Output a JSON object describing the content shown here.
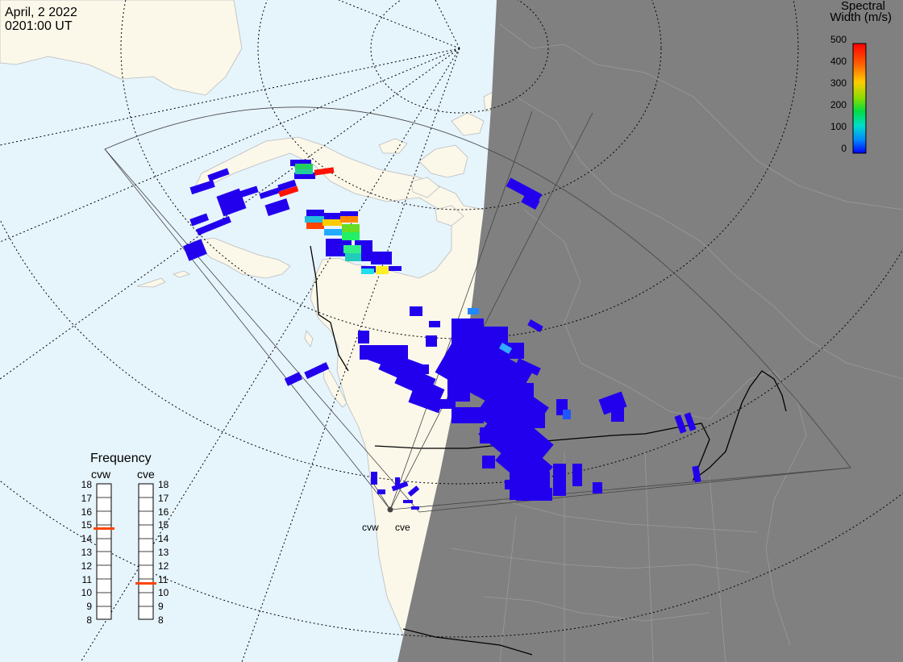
{
  "header": {
    "date": "April, 2 2022",
    "time": "0201:00 UT"
  },
  "legend": {
    "title_line1": "Spectral",
    "title_line2": "Width (m/s)",
    "ticks": [
      "500",
      "400",
      "300",
      "200",
      "100",
      "0"
    ]
  },
  "frequency": {
    "title": "Frequency",
    "radars": [
      {
        "label": "cvw",
        "selected": 15
      },
      {
        "label": "cve",
        "selected": 11
      }
    ],
    "ticks": [
      "18",
      "17",
      "16",
      "15",
      "14",
      "13",
      "12",
      "11",
      "10",
      "9",
      "8"
    ]
  },
  "sites": {
    "cvw": "cvw",
    "cve": "cve"
  },
  "colors": {
    "ocean": "#e6f4fc",
    "land": "#fbf8ea",
    "night": "#808080",
    "echo_low": "#2200ee",
    "selected_freq": "#ff4400"
  }
}
